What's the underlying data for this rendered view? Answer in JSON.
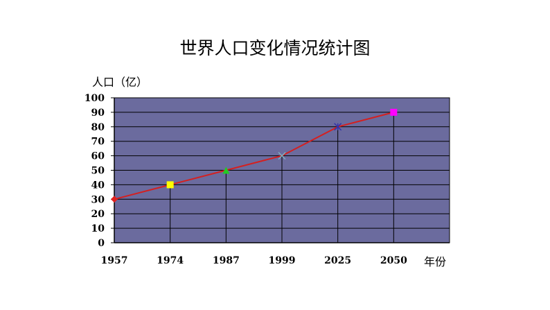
{
  "chart_data": {
    "type": "line",
    "title": "世界人口变化情况统计图",
    "ylabel": "人口（亿）",
    "xlabel": "年份",
    "categories": [
      "1957",
      "1974",
      "1987",
      "1999",
      "2025",
      "2050"
    ],
    "series": [
      {
        "values": [
          30,
          40,
          50,
          60,
          80,
          90
        ]
      }
    ],
    "ylim": [
      0,
      100
    ],
    "yticks": [
      0,
      10,
      20,
      30,
      40,
      50,
      60,
      70,
      80,
      90,
      100
    ],
    "grid": true,
    "colors": {
      "plot_background": "#6b6b9e",
      "gridline": "#000000",
      "line": "#d42020",
      "markers": [
        "#e0201e",
        "#ffff00",
        "#22cc22",
        "#7fb0c0",
        "#3333aa",
        "#ff00ff"
      ]
    },
    "marker_shapes": [
      "diamond",
      "square",
      "triangle",
      "x",
      "star",
      "square"
    ]
  }
}
